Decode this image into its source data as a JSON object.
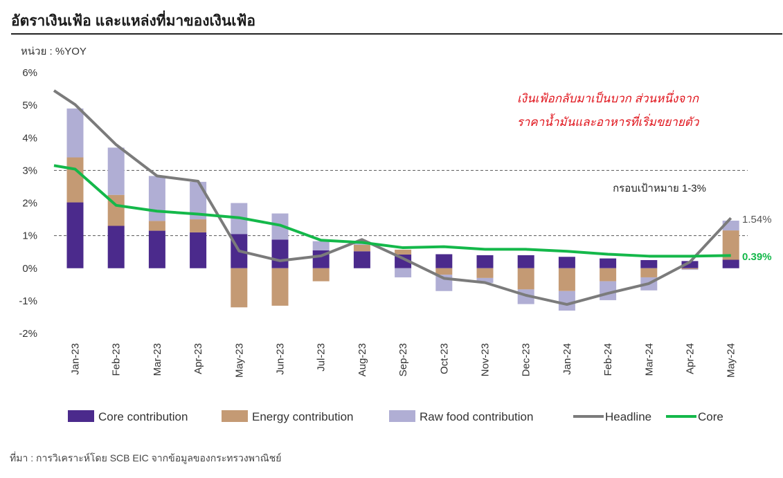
{
  "header": {
    "title": "อัตราเงินเฟ้อ  และแหล่งที่มาของเงินเฟ้อ",
    "unit": "หน่วย : %YOY"
  },
  "footer": {
    "source": "ที่มา : การวิเคราะห์โดย SCB EIC จากข้อมูลของกระทรวงพาณิชย์"
  },
  "annotations": {
    "note_line1": "เงินเฟ้อกลับมาเป็นบวก ส่วนหนึ่งจาก",
    "note_line2": "ราคาน้ำมันและอาหารที่เริ่มขยายตัว",
    "target_band": "กรอบเป้าหมาย 1-3%",
    "headline_end": "1.54%",
    "core_end": "0.39%"
  },
  "colors": {
    "core_contribution": "#4b2a8c",
    "energy_contribution": "#c49a74",
    "raw_food_contribution": "#b0aed4",
    "headline": "#7b7b7b",
    "core": "#14b84a",
    "annotation": "#e0131b"
  },
  "chart_data": {
    "type": "bar",
    "stacked": true,
    "categories": [
      "Jan-23",
      "Feb-23",
      "Mar-23",
      "Apr-23",
      "May-23",
      "Jun-23",
      "Jul-23",
      "Aug-23",
      "Sep-23",
      "Oct-23",
      "Nov-23",
      "Dec-23",
      "Jan-24",
      "Feb-24",
      "Mar-24",
      "Apr-24",
      "May-24"
    ],
    "y_ticks": [
      "6%",
      "5%",
      "4%",
      "3%",
      "2%",
      "1%",
      "0%",
      "-1%",
      "-2%"
    ],
    "ylim": [
      -2,
      6
    ],
    "reference_lines": [
      1,
      3
    ],
    "series": [
      {
        "name": "Core contribution",
        "kind": "bar",
        "values": [
          2.02,
          1.3,
          1.15,
          1.1,
          1.05,
          0.88,
          0.55,
          0.52,
          0.42,
          0.43,
          0.4,
          0.4,
          0.35,
          0.3,
          0.25,
          0.22,
          0.26
        ]
      },
      {
        "name": "Energy contribution",
        "kind": "bar",
        "values": [
          1.38,
          0.95,
          0.3,
          0.4,
          -1.2,
          -1.15,
          -0.4,
          0.2,
          0.15,
          -0.2,
          -0.3,
          -0.65,
          -0.7,
          -0.4,
          -0.28,
          -0.03,
          0.9
        ]
      },
      {
        "name": "Raw food contribution",
        "kind": "bar",
        "values": [
          1.5,
          1.45,
          1.38,
          1.15,
          0.95,
          0.8,
          0.28,
          0.1,
          -0.28,
          -0.5,
          -0.15,
          -0.45,
          -0.6,
          -0.58,
          -0.4,
          -0.02,
          0.3
        ]
      },
      {
        "name": "Headline",
        "kind": "line",
        "values": [
          5.02,
          3.79,
          2.83,
          2.67,
          0.53,
          0.23,
          0.38,
          0.88,
          0.3,
          -0.31,
          -0.44,
          -0.83,
          -1.11,
          -0.77,
          -0.47,
          0.19,
          1.54
        ]
      },
      {
        "name": "Core",
        "kind": "line",
        "values": [
          3.04,
          1.93,
          1.75,
          1.66,
          1.55,
          1.32,
          0.86,
          0.79,
          0.63,
          0.66,
          0.58,
          0.58,
          0.52,
          0.43,
          0.37,
          0.37,
          0.39
        ]
      }
    ],
    "headline_start": 5.45,
    "core_start": 3.15,
    "legend_position": "bottom"
  }
}
